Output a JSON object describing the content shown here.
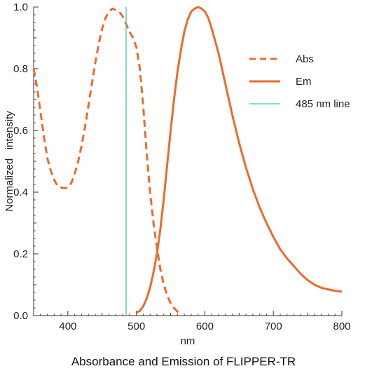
{
  "chart_data": {
    "type": "line",
    "title": "Absorbance and Emission of FLIPPER-TR",
    "xlabel": "nm",
    "ylabel": "Normalized   intensity",
    "xlim": [
      350,
      800
    ],
    "ylim": [
      0,
      1.0
    ],
    "xticks": [
      {
        "value": 400,
        "label": "400"
      },
      {
        "value": 500,
        "label": "500"
      },
      {
        "value": 600,
        "label": "600"
      },
      {
        "value": 700,
        "label": "700"
      },
      {
        "value": 800,
        "label": "800"
      }
    ],
    "yticks": [
      {
        "value": 0.0,
        "label": "0.0"
      },
      {
        "value": 0.2,
        "label": "0.2"
      },
      {
        "value": 0.4,
        "label": "0.4"
      },
      {
        "value": 0.6,
        "label": "0.6"
      },
      {
        "value": 0.8,
        "label": "0.8"
      },
      {
        "value": 1.0,
        "label": "1.0"
      }
    ],
    "grid": false,
    "legend_position": "right",
    "series": [
      {
        "name": "Abs",
        "style": "dashed",
        "color": "#ee6a2c",
        "x": [
          350,
          355,
          360,
          365,
          370,
          375,
          380,
          385,
          390,
          395,
          400,
          405,
          410,
          415,
          420,
          425,
          430,
          435,
          440,
          445,
          450,
          455,
          460,
          465,
          470,
          475,
          480,
          485,
          490,
          495,
          500,
          505,
          510,
          515,
          520,
          525,
          530,
          535,
          540,
          545,
          550,
          555,
          560,
          565
        ],
        "y": [
          0.8,
          0.74,
          0.66,
          0.58,
          0.51,
          0.47,
          0.44,
          0.42,
          0.415,
          0.413,
          0.415,
          0.43,
          0.46,
          0.5,
          0.55,
          0.61,
          0.68,
          0.75,
          0.82,
          0.88,
          0.93,
          0.965,
          0.985,
          0.995,
          0.99,
          0.985,
          0.97,
          0.945,
          0.92,
          0.9,
          0.87,
          0.8,
          0.68,
          0.53,
          0.4,
          0.3,
          0.22,
          0.15,
          0.1,
          0.065,
          0.04,
          0.025,
          0.013,
          0.007
        ]
      },
      {
        "name": "Em",
        "style": "solid",
        "color": "#ee6a2c",
        "x": [
          500,
          505,
          510,
          515,
          520,
          525,
          530,
          535,
          540,
          545,
          550,
          555,
          560,
          565,
          570,
          575,
          580,
          585,
          590,
          595,
          600,
          605,
          610,
          615,
          620,
          625,
          630,
          640,
          650,
          660,
          670,
          680,
          690,
          700,
          710,
          720,
          730,
          740,
          750,
          760,
          770,
          780,
          790,
          800
        ],
        "y": [
          0.01,
          0.015,
          0.03,
          0.055,
          0.09,
          0.14,
          0.2,
          0.28,
          0.38,
          0.49,
          0.6,
          0.7,
          0.79,
          0.86,
          0.92,
          0.96,
          0.985,
          0.995,
          1.0,
          0.995,
          0.985,
          0.965,
          0.93,
          0.89,
          0.85,
          0.8,
          0.75,
          0.65,
          0.56,
          0.48,
          0.41,
          0.35,
          0.3,
          0.255,
          0.215,
          0.185,
          0.16,
          0.135,
          0.115,
          0.1,
          0.09,
          0.085,
          0.08,
          0.078
        ]
      },
      {
        "name": "485 nm line",
        "style": "vertical",
        "color": "#3ec8a8",
        "x": [
          485,
          485
        ],
        "y": [
          0,
          1.0
        ]
      }
    ]
  }
}
